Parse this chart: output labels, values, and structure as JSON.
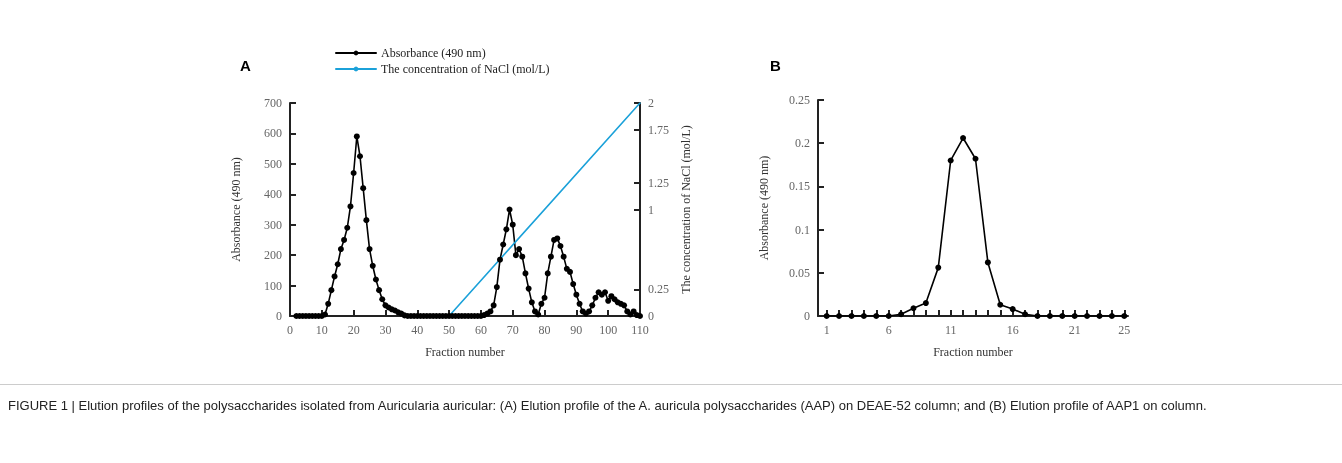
{
  "chart_data": [
    {
      "type": "line",
      "xlabel": "Fraction number",
      "ylabel": "Absorbance (490 nm)",
      "y2label": "The concentration of NaCl (mol/L)",
      "annotations": [
        "A"
      ],
      "xlim": [
        0,
        110
      ],
      "xticks": [
        0,
        10,
        20,
        30,
        40,
        50,
        60,
        70,
        80,
        90,
        100,
        110
      ],
      "ylim": [
        0,
        700
      ],
      "yticks": [
        0,
        100,
        200,
        300,
        400,
        500,
        600,
        700
      ],
      "y2lim": [
        0,
        2
      ],
      "y2ticks": [
        0,
        0.25,
        1,
        1.25,
        1.75,
        2
      ],
      "grid": false,
      "legend": "top",
      "series": [
        {
          "name": "Absorbance (490 nm)",
          "color": "#000000",
          "marker": "circle",
          "line_style": "solid",
          "x": [
            2,
            3,
            4,
            5,
            6,
            7,
            8,
            9,
            10,
            11,
            12,
            13,
            14,
            15,
            16,
            17,
            18,
            19,
            20,
            21,
            22,
            23,
            24,
            25,
            26,
            27,
            28,
            29,
            30,
            31,
            32,
            33,
            34,
            35,
            36,
            37,
            38,
            39,
            40,
            41,
            42,
            43,
            44,
            45,
            46,
            47,
            48,
            49,
            50,
            51,
            52,
            53,
            54,
            55,
            56,
            57,
            58,
            59,
            60,
            61,
            62,
            63,
            64,
            65,
            66,
            67,
            68,
            69,
            70,
            71,
            72,
            73,
            74,
            75,
            76,
            77,
            78,
            79,
            80,
            81,
            82,
            83,
            84,
            85,
            86,
            87,
            88,
            89,
            90,
            91,
            92,
            93,
            94,
            95,
            96,
            97,
            98,
            99,
            100,
            101,
            102,
            103,
            104,
            105,
            106,
            107,
            108,
            109,
            110
          ],
          "values": [
            0,
            0,
            0,
            0,
            0,
            0,
            0,
            0,
            0,
            5,
            40,
            85,
            130,
            170,
            220,
            250,
            290,
            360,
            470,
            590,
            525,
            420,
            315,
            220,
            165,
            120,
            85,
            55,
            35,
            28,
            22,
            18,
            12,
            8,
            2,
            0,
            0,
            0,
            0,
            0,
            0,
            0,
            0,
            0,
            0,
            0,
            0,
            0,
            0,
            0,
            0,
            0,
            0,
            0,
            0,
            0,
            0,
            0,
            0,
            3,
            8,
            15,
            35,
            95,
            185,
            235,
            285,
            350,
            300,
            200,
            220,
            195,
            140,
            90,
            45,
            15,
            5,
            40,
            60,
            140,
            195,
            250,
            255,
            230,
            195,
            155,
            145,
            105,
            70,
            40,
            15,
            8,
            15,
            35,
            60,
            78,
            70,
            78,
            50,
            65,
            55,
            45,
            40,
            35,
            15,
            5,
            15,
            3,
            0
          ]
        },
        {
          "name": "The concentration of NaCl (mol/L)",
          "color": "#1ba1d9",
          "marker": "none",
          "line_style": "solid",
          "axis": "y2",
          "x": [
            50,
            110
          ],
          "values": [
            0,
            2
          ]
        }
      ]
    },
    {
      "type": "line",
      "xlabel": "Fraction number",
      "ylabel": "Absorbance (490 nm)",
      "annotations": [
        "B",
        "FIGURE 1 | Elution profiles of the polysaccharides isolated from Auricularia auricular: (A) Elution profile of the A. auricula polysaccharides (AAP) on DEAE-52 column; and (B) Elution profile of AAP1 on column."
      ],
      "xlim": [
        0.3,
        25.3
      ],
      "xticks": [
        1,
        {
          "value": 2,
          "label": null
        },
        {
          "value": 3,
          "label": null
        },
        {
          "value": 4,
          "label": null
        },
        {
          "value": 5,
          "label": null
        },
        6,
        {
          "value": 7,
          "label": null
        },
        {
          "value": 8,
          "label": null
        },
        {
          "value": 9,
          "label": null
        },
        {
          "value": 10,
          "label": null
        },
        11,
        {
          "value": 12,
          "label": null
        },
        {
          "value": 13,
          "label": null
        },
        {
          "value": 14,
          "label": null
        },
        {
          "value": 15,
          "label": null
        },
        16,
        {
          "value": 17,
          "label": null
        },
        {
          "value": 18,
          "label": null
        },
        {
          "value": 19,
          "label": null
        },
        {
          "value": 20,
          "label": null
        },
        21,
        {
          "value": 22,
          "label": null
        },
        {
          "value": 23,
          "label": null
        },
        {
          "value": 24,
          "label": null
        },
        25
      ],
      "ylim": [
        0,
        0.25
      ],
      "yticks": [
        0,
        0.05,
        0.1,
        0.15,
        0.2,
        0.25
      ],
      "grid": false,
      "series": [
        {
          "color": "#000000",
          "marker": "circle",
          "line_style": "solid",
          "x": [
            1,
            2,
            3,
            4,
            5,
            6,
            7,
            8,
            9,
            10,
            11,
            12,
            13,
            14,
            15,
            16,
            17,
            18,
            19,
            20,
            21,
            22,
            23,
            24,
            25
          ],
          "values": [
            0,
            0,
            0,
            0,
            0,
            0,
            0.002,
            0.009,
            0.015,
            0.056,
            0.18,
            0.206,
            0.182,
            0.062,
            0.013,
            0.008,
            0.002,
            0,
            0,
            0,
            0,
            0,
            0,
            0,
            0
          ]
        }
      ]
    }
  ]
}
